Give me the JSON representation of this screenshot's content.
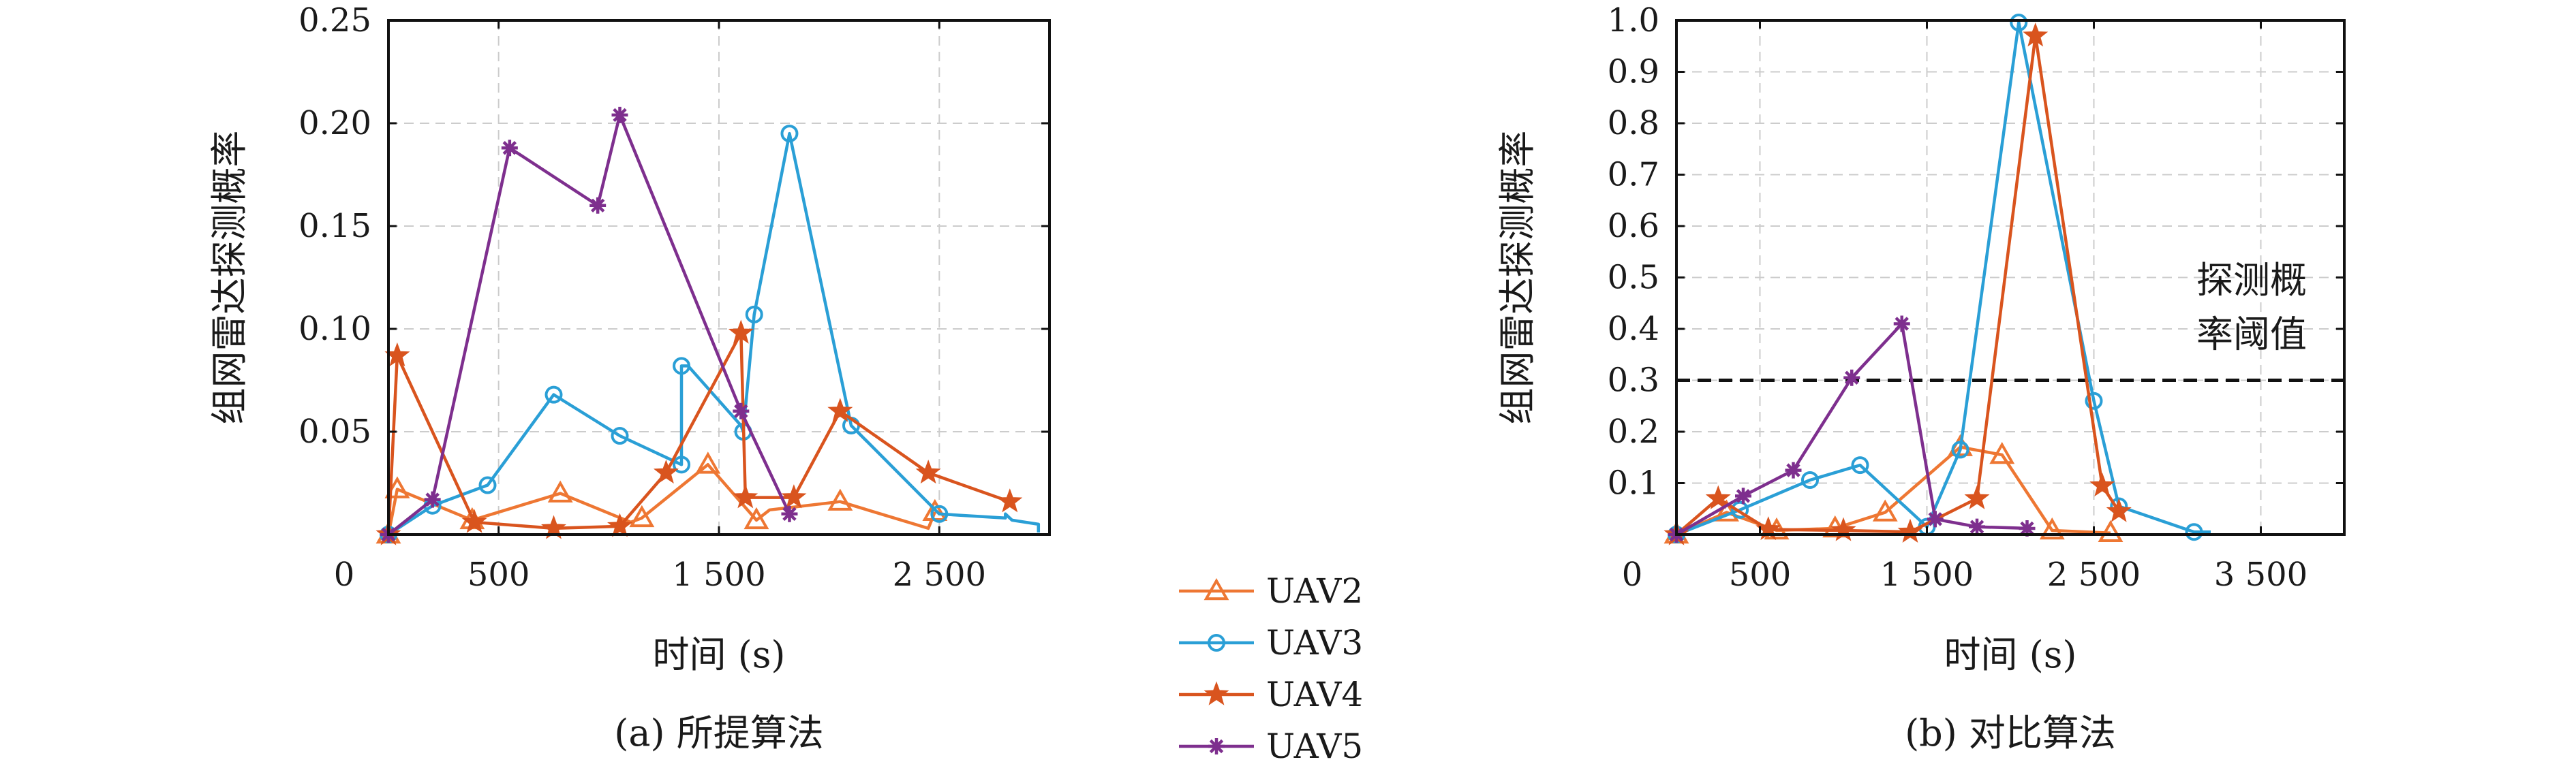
{
  "series_styles": [
    {
      "name": "UAV2",
      "color": "#EE7733",
      "marker": "triangle"
    },
    {
      "name": "UAV3",
      "color": "#2A9FD6",
      "marker": "circle"
    },
    {
      "name": "UAV4",
      "color": "#D9541E",
      "marker": "star"
    },
    {
      "name": "UAV5",
      "color": "#7E2F8E",
      "marker": "asterisk"
    }
  ],
  "legend": {
    "placement": "center-bottom",
    "items": [
      "UAV2",
      "UAV3",
      "UAV4",
      "UAV5"
    ]
  },
  "chart_data": [
    {
      "type": "line",
      "caption": "(a) 所提算法",
      "xlabel": "时间 (s)",
      "ylabel": "组网雷达探测概率",
      "xlim": [
        0,
        3000
      ],
      "ylim": [
        0,
        0.25
      ],
      "xticks": [
        0,
        500,
        1500,
        2500
      ],
      "xtick_labels": [
        "0",
        "500",
        "1 500",
        "2 500"
      ],
      "yticks": [
        0.05,
        0.1,
        0.15,
        0.2,
        0.25
      ],
      "ytick_labels": [
        "0.05",
        "0.10",
        "0.15",
        "0.20",
        "0.25"
      ],
      "grid": true,
      "series": [
        {
          "name": "UAV2",
          "x": [
            0,
            40,
            380,
            780,
            1100,
            1150,
            1450,
            1670,
            1730,
            2050,
            2450,
            2480
          ],
          "y": [
            0,
            0.022,
            0.007,
            0.02,
            0.006,
            0.008,
            0.034,
            0.007,
            0.012,
            0.016,
            0.003,
            0.011
          ],
          "markers": [
            1,
            1,
            1,
            1,
            0,
            1,
            1,
            1,
            0,
            1,
            0,
            1
          ]
        },
        {
          "name": "UAV3",
          "x": [
            0,
            200,
            450,
            750,
            1050,
            1330,
            1330,
            1360,
            1600,
            1610,
            1660,
            1820,
            2100,
            2500,
            2800,
            2800,
            2830,
            2950,
            2950
          ],
          "y": [
            0,
            0.014,
            0.024,
            0.068,
            0.048,
            0.034,
            0.082,
            0.082,
            0.053,
            0.05,
            0.107,
            0.195,
            0.053,
            0.01,
            0.008,
            0.01,
            0.007,
            0.005,
            0.001
          ],
          "markers": [
            1,
            1,
            1,
            1,
            1,
            1,
            1,
            0,
            0,
            1,
            1,
            1,
            1,
            1,
            0,
            0,
            0,
            0,
            0
          ]
        },
        {
          "name": "UAV4",
          "x": [
            0,
            40,
            390,
            750,
            1050,
            1260,
            1600,
            1620,
            1840,
            2050,
            2450,
            2820
          ],
          "y": [
            0,
            0.087,
            0.006,
            0.003,
            0.004,
            0.03,
            0.098,
            0.018,
            0.018,
            0.06,
            0.03,
            0.016
          ],
          "markers": [
            1,
            1,
            1,
            1,
            1,
            1,
            1,
            1,
            1,
            1,
            1,
            1
          ]
        },
        {
          "name": "UAV5",
          "x": [
            0,
            200,
            550,
            950,
            1050,
            1600,
            1820
          ],
          "y": [
            0,
            0.017,
            0.188,
            0.16,
            0.204,
            0.06,
            0.01
          ],
          "markers": [
            1,
            1,
            1,
            1,
            1,
            1,
            1
          ]
        }
      ]
    },
    {
      "type": "line",
      "caption": "(b) 对比算法",
      "xlabel": "时间 (s)",
      "ylabel": "组网雷达探测概率",
      "xlim": [
        0,
        4000
      ],
      "ylim": [
        0,
        1.0
      ],
      "xticks": [
        0,
        500,
        1500,
        2500,
        3500
      ],
      "xtick_labels": [
        "0",
        "500",
        "1 500",
        "2 500",
        "3 500"
      ],
      "yticks": [
        0.1,
        0.2,
        0.3,
        0.4,
        0.5,
        0.6,
        0.7,
        0.8,
        0.9,
        1.0
      ],
      "ytick_labels": [
        "0.1",
        "0.2",
        "0.3",
        "0.4",
        "0.5",
        "0.6",
        "0.7",
        "0.8",
        "0.9",
        "1.0"
      ],
      "grid": true,
      "threshold": {
        "y": 0.3,
        "label_line1": "探测概",
        "label_line2": "率阈值"
      },
      "series": [
        {
          "name": "UAV2",
          "x": [
            0,
            300,
            600,
            950,
            1250,
            1700,
            1950,
            2250,
            2600
          ],
          "y": [
            0,
            0.043,
            0.008,
            0.012,
            0.043,
            0.17,
            0.155,
            0.008,
            0.003
          ],
          "markers": [
            1,
            1,
            1,
            1,
            1,
            1,
            1,
            1,
            1
          ]
        },
        {
          "name": "UAV3",
          "x": [
            0,
            380,
            800,
            1100,
            1500,
            1700,
            2050,
            2500,
            2650,
            3100,
            3200
          ],
          "y": [
            0,
            0.048,
            0.106,
            0.135,
            0.015,
            0.165,
            0.996,
            0.26,
            0.055,
            0.005,
            0.005
          ],
          "markers": [
            1,
            1,
            1,
            1,
            1,
            1,
            1,
            1,
            1,
            1,
            0
          ]
        },
        {
          "name": "UAV4",
          "x": [
            0,
            250,
            550,
            1000,
            1400,
            1800,
            2150,
            2550,
            2650
          ],
          "y": [
            0,
            0.07,
            0.01,
            0.008,
            0.005,
            0.07,
            0.97,
            0.095,
            0.045
          ],
          "markers": [
            1,
            1,
            1,
            1,
            1,
            1,
            1,
            1,
            1
          ]
        },
        {
          "name": "UAV5",
          "x": [
            0,
            400,
            700,
            1050,
            1350,
            1550,
            1800,
            2100
          ],
          "y": [
            0,
            0.075,
            0.125,
            0.305,
            0.41,
            0.03,
            0.015,
            0.012
          ],
          "markers": [
            1,
            1,
            1,
            1,
            1,
            1,
            1,
            1
          ]
        }
      ]
    }
  ]
}
